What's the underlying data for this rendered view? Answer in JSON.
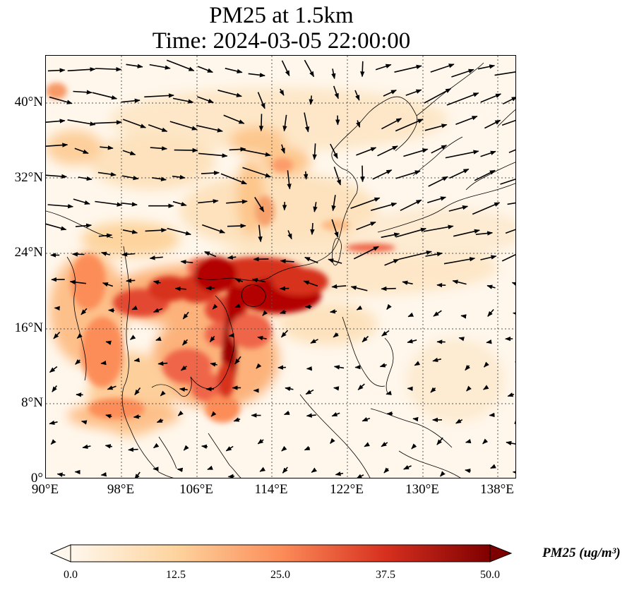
{
  "title": {
    "line1": "PM25 at 1.5km",
    "line2": "Time: 2024-03-05 22:00:00"
  },
  "map": {
    "region": "East Asia / South China Sea",
    "lon_range": [
      90,
      140
    ],
    "lat_range": [
      0,
      45
    ],
    "x_ticks": [
      "90°E",
      "98°E",
      "106°E",
      "114°E",
      "122°E",
      "130°E",
      "138°E"
    ],
    "y_ticks": [
      "40°N",
      "32°N",
      "24°N",
      "16°N",
      "8°N",
      "0°"
    ],
    "gridlines": "dotted",
    "field": "PM25 concentration shaded, wind vectors overlaid"
  },
  "colorbar": {
    "label": "PM25 (ug/m³)",
    "ticks": [
      "0.0",
      "12.5",
      "25.0",
      "37.5",
      "50.0"
    ],
    "min": 0,
    "max": 50,
    "colormap": "OrRd",
    "colors": [
      "#fff7ec",
      "#fdd49e",
      "#fc8d59",
      "#d7301f",
      "#7f0000"
    ]
  }
}
